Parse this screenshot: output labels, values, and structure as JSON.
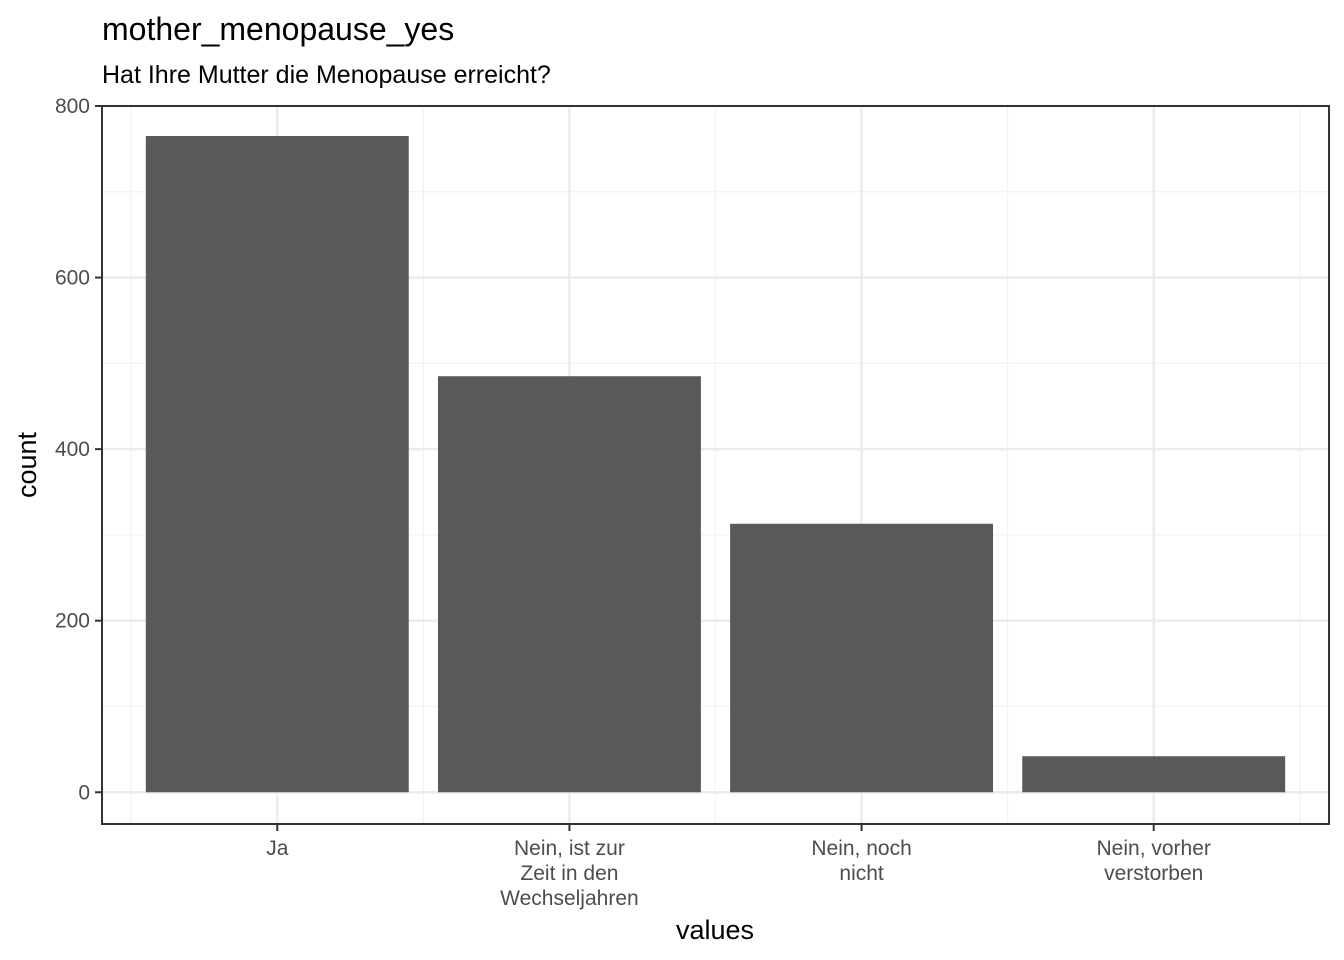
{
  "chart_data": {
    "type": "bar",
    "title": "mother_menopause_yes",
    "subtitle": "Hat Ihre Mutter die Menopause erreicht?",
    "xlabel": "values",
    "ylabel": "count",
    "categories": [
      [
        "Ja"
      ],
      [
        "Nein, ist zur",
        "Zeit in den",
        "Wechseljahren"
      ],
      [
        "Nein, noch",
        "nicht"
      ],
      [
        "Nein, vorher",
        "verstorben"
      ]
    ],
    "values": [
      765,
      485,
      313,
      42
    ],
    "ylim": [
      -37,
      800
    ],
    "yticks": [
      "0",
      "200",
      "400",
      "600",
      "800"
    ],
    "grid": true,
    "legend": "none",
    "colors": {
      "bar": "#595959",
      "grid_major": "#ebebeb",
      "grid_minor": "#f2f2f2",
      "panel_border": "#333333",
      "tick_text": "#4d4d4d"
    }
  }
}
